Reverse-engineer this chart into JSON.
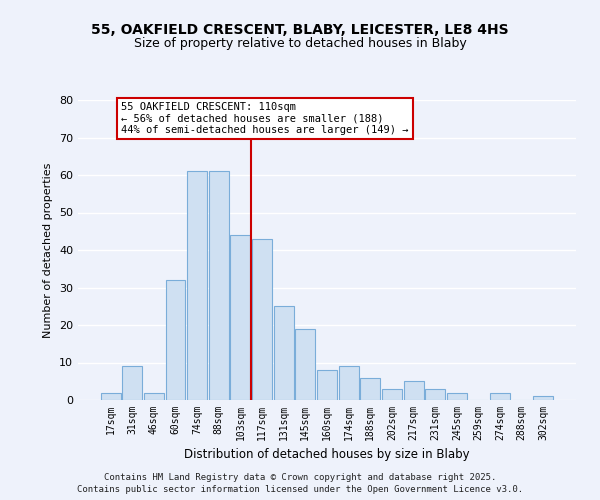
{
  "title_line1": "55, OAKFIELD CRESCENT, BLABY, LEICESTER, LE8 4HS",
  "title_line2": "Size of property relative to detached houses in Blaby",
  "xlabel": "Distribution of detached houses by size in Blaby",
  "ylabel": "Number of detached properties",
  "bar_labels": [
    "17sqm",
    "31sqm",
    "46sqm",
    "60sqm",
    "74sqm",
    "88sqm",
    "103sqm",
    "117sqm",
    "131sqm",
    "145sqm",
    "160sqm",
    "174sqm",
    "188sqm",
    "202sqm",
    "217sqm",
    "231sqm",
    "245sqm",
    "259sqm",
    "274sqm",
    "288sqm",
    "302sqm"
  ],
  "bar_values": [
    2,
    9,
    2,
    32,
    61,
    61,
    44,
    43,
    25,
    19,
    8,
    9,
    6,
    3,
    5,
    3,
    2,
    0,
    2,
    0,
    1
  ],
  "bar_color": "#cfe0f2",
  "bar_edge_color": "#7aadd9",
  "reference_line_color": "#cc0000",
  "annotation_line1": "55 OAKFIELD CRESCENT: 110sqm",
  "annotation_line2": "← 56% of detached houses are smaller (188)",
  "annotation_line3": "44% of semi-detached houses are larger (149) →",
  "annotation_box_color": "white",
  "annotation_box_edge": "#cc0000",
  "ylim": [
    0,
    80
  ],
  "yticks": [
    0,
    10,
    20,
    30,
    40,
    50,
    60,
    70,
    80
  ],
  "background_color": "#eef2fb",
  "grid_color": "white",
  "footnote1": "Contains HM Land Registry data © Crown copyright and database right 2025.",
  "footnote2": "Contains public sector information licensed under the Open Government Licence v3.0."
}
